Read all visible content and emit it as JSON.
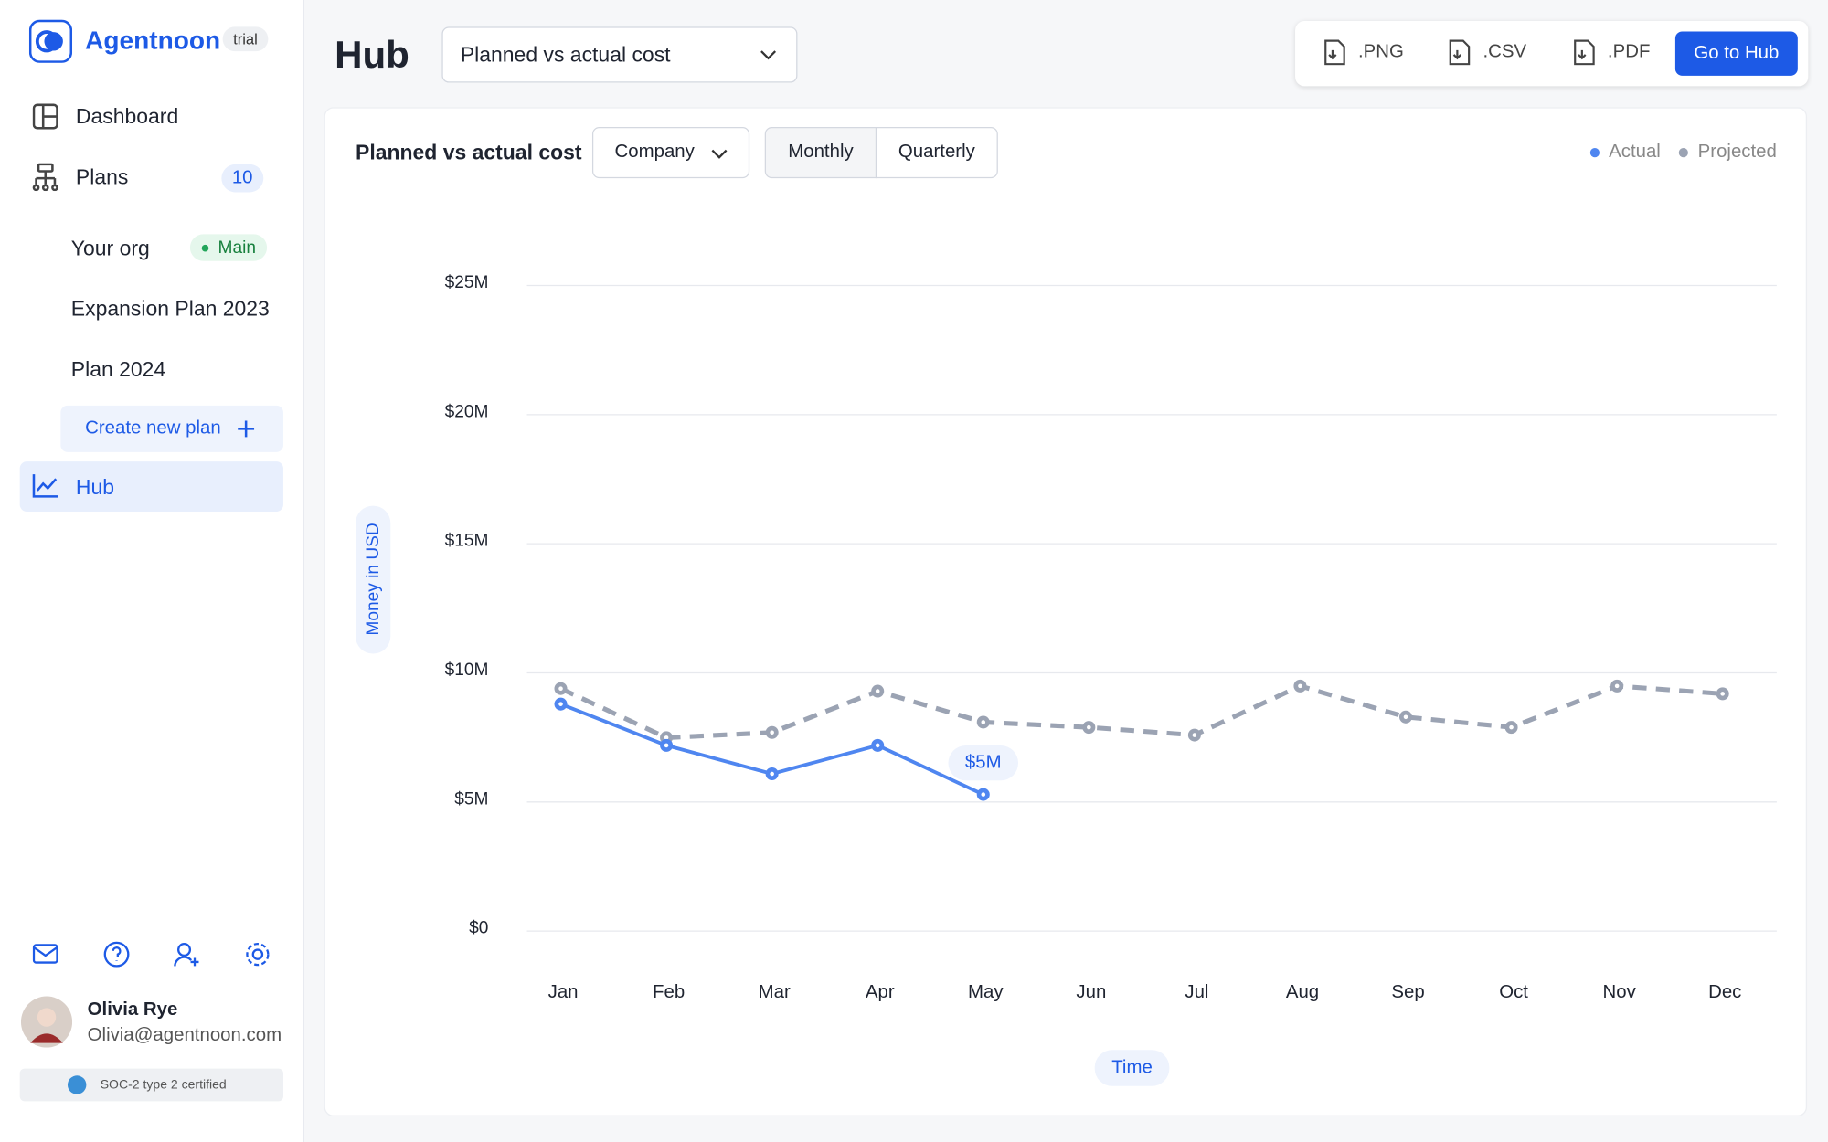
{
  "sidebar": {
    "brand": "Agentnoon",
    "badge": "trial",
    "nav": [
      {
        "label": "Dashboard"
      },
      {
        "label": "Plans",
        "count": 10
      }
    ],
    "plans": [
      {
        "label": "Your org",
        "tag": "Main"
      },
      {
        "label": "Expansion Plan 2023"
      },
      {
        "label": "Plan 2024"
      }
    ],
    "create": "Create new plan",
    "active": "Hub",
    "user": {
      "name": "Olivia Rye",
      "email": "Olivia@agentnoon.com"
    },
    "cert": "SOC-2 type 2 certified"
  },
  "header": {
    "title": "Hub",
    "select": "Planned vs actual cost",
    "exports": [
      ".PNG",
      ".CSV",
      ".PDF"
    ],
    "button": "Go to Hub"
  },
  "card": {
    "filter": "Company",
    "toggles": [
      "Monthly",
      "Quarterly"
    ]
  },
  "chart_data": {
    "type": "line",
    "title": "Planned vs actual cost",
    "y_label": "Money in USD",
    "x_label": "Time",
    "categories": [
      "Jan",
      "Feb",
      "Mar",
      "Apr",
      "May",
      "Jun",
      "Jul",
      "Aug",
      "Sep",
      "Oct",
      "Nov",
      "Dec"
    ],
    "series": [
      {
        "name": "Actual",
        "color": "#4f86f0",
        "dashed": false,
        "values": [
          8.7,
          7.1,
          6.0,
          7.1,
          5.2,
          null,
          null,
          null,
          null,
          null,
          null,
          null
        ],
        "value_labels": [
          null,
          null,
          null,
          null,
          "$5M",
          null,
          null,
          null,
          null,
          null,
          null,
          null
        ]
      },
      {
        "name": "Projected",
        "color": "#9ba3b3",
        "dashed": true,
        "values": [
          9.3,
          7.4,
          7.6,
          9.2,
          8.0,
          7.8,
          7.5,
          9.4,
          8.2,
          7.8,
          9.4,
          9.1
        ]
      }
    ],
    "ylim": [
      0,
      25
    ],
    "yticks": [
      {
        "value": 0,
        "label": "$0"
      },
      {
        "value": 5,
        "label": "$5M"
      },
      {
        "value": 10,
        "label": "$10M"
      },
      {
        "value": 15,
        "label": "$15M"
      },
      {
        "value": 20,
        "label": "$20M"
      },
      {
        "value": 25,
        "label": "$25M"
      }
    ],
    "grid": true,
    "legend": "top-right"
  }
}
